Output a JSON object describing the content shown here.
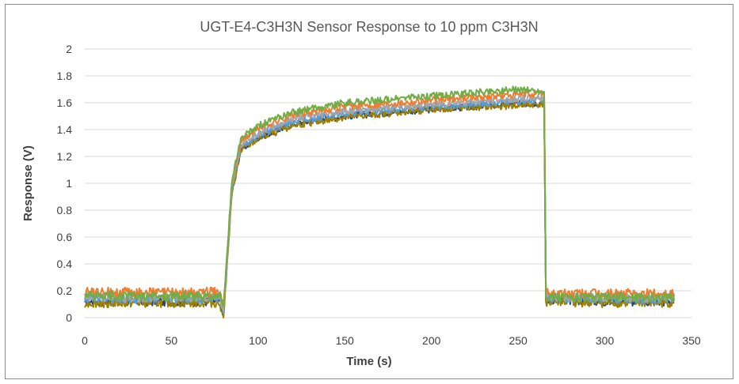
{
  "chart_data": {
    "type": "line",
    "title": "UGT-E4-C3H3N Sensor Response to 10 ppm C3H3N",
    "xlabel": "Time (s)",
    "ylabel": "Response (V)",
    "xlim": [
      0,
      350
    ],
    "ylim": [
      0,
      2
    ],
    "xticks": [
      "0",
      "50",
      "100",
      "150",
      "200",
      "250",
      "300",
      "350"
    ],
    "yticks": [
      "0",
      "0.2",
      "0.4",
      "0.6",
      "0.8",
      "1",
      "1.2",
      "1.4",
      "1.6",
      "1.8",
      "2"
    ],
    "xtick_values": [
      0,
      50,
      100,
      150,
      200,
      250,
      300,
      350
    ],
    "ytick_values": [
      0,
      0.2,
      0.4,
      0.6,
      0.8,
      1,
      1.2,
      1.4,
      1.6,
      1.8,
      2
    ],
    "grid": "horizontal",
    "legend": "none",
    "series": [
      {
        "color": "#264478",
        "baseline": 0.12,
        "x": [
          0,
          78,
          80,
          85,
          90,
          100,
          120,
          150,
          200,
          250,
          265,
          266,
          300,
          340
        ],
        "y": [
          0.12,
          0.12,
          0.02,
          0.95,
          1.25,
          1.34,
          1.44,
          1.5,
          1.55,
          1.59,
          1.6,
          0.14,
          0.12,
          0.12
        ]
      },
      {
        "color": "#9E7F00",
        "baseline": 0.11,
        "x": [
          0,
          78,
          80,
          85,
          90,
          100,
          120,
          150,
          200,
          250,
          265,
          266,
          300,
          340
        ],
        "y": [
          0.11,
          0.11,
          0.0,
          0.93,
          1.24,
          1.33,
          1.43,
          1.49,
          1.55,
          1.58,
          1.59,
          0.12,
          0.11,
          0.11
        ]
      },
      {
        "color": "#5B9BD5",
        "baseline": 0.14,
        "x": [
          0,
          78,
          80,
          85,
          90,
          100,
          120,
          150,
          200,
          250,
          265,
          266,
          300,
          340
        ],
        "y": [
          0.14,
          0.14,
          0.04,
          0.97,
          1.27,
          1.36,
          1.46,
          1.52,
          1.57,
          1.61,
          1.62,
          0.15,
          0.14,
          0.14
        ]
      },
      {
        "color": "#A5A5A5",
        "baseline": 0.15,
        "x": [
          0,
          78,
          80,
          85,
          90,
          100,
          120,
          150,
          200,
          250,
          265,
          266,
          300,
          340
        ],
        "y": [
          0.15,
          0.15,
          0.05,
          0.99,
          1.29,
          1.38,
          1.48,
          1.54,
          1.59,
          1.63,
          1.64,
          0.16,
          0.15,
          0.15
        ]
      },
      {
        "color": "#ED7D31",
        "baseline": 0.19,
        "x": [
          0,
          78,
          80,
          85,
          90,
          100,
          120,
          150,
          200,
          250,
          265,
          266,
          300,
          340
        ],
        "y": [
          0.19,
          0.19,
          0.08,
          1.02,
          1.31,
          1.41,
          1.51,
          1.57,
          1.62,
          1.66,
          1.67,
          0.18,
          0.18,
          0.18
        ]
      },
      {
        "color": "#70AD47",
        "baseline": 0.16,
        "x": [
          0,
          78,
          80,
          85,
          90,
          100,
          120,
          150,
          200,
          250,
          265,
          266,
          300,
          340
        ],
        "y": [
          0.16,
          0.16,
          0.06,
          1.03,
          1.33,
          1.43,
          1.53,
          1.6,
          1.65,
          1.7,
          1.68,
          0.15,
          0.15,
          0.15
        ]
      }
    ]
  }
}
